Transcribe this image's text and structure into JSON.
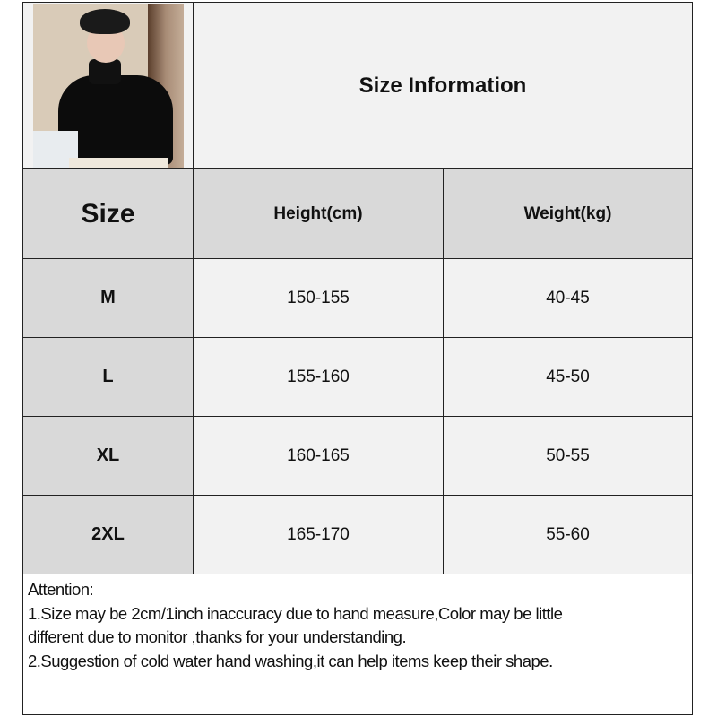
{
  "title": "Size Information",
  "table": {
    "headers": [
      "Size",
      "Height(cm)",
      "Weight(kg)"
    ],
    "rows": [
      {
        "size": "M",
        "height": "150-155",
        "weight": "40-45"
      },
      {
        "size": "L",
        "height": "155-160",
        "weight": "45-50"
      },
      {
        "size": "XL",
        "height": "160-165",
        "weight": "50-55"
      },
      {
        "size": "2XL",
        "height": "165-170",
        "weight": "55-60"
      }
    ]
  },
  "notes": {
    "heading": "Attention:",
    "line1a": "1.Size may be 2cm/1inch inaccuracy due to hand measure,Color may be little",
    "line1b": "different due to monitor ,thanks for your understanding.",
    "line2": "2.Suggestion of cold water hand washing,it can help items keep their shape."
  },
  "colors": {
    "header_bg": "#d9d9d9",
    "cell_bg": "#f2f2f2",
    "border": "#222222"
  }
}
